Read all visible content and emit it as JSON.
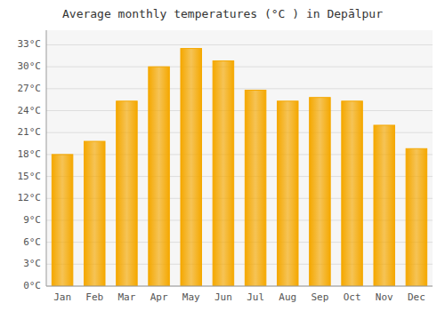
{
  "chart_data": {
    "type": "bar",
    "title": "Average monthly temperatures (°C ) in Depālpur",
    "categories": [
      "Jan",
      "Feb",
      "Mar",
      "Apr",
      "May",
      "Jun",
      "Jul",
      "Aug",
      "Sep",
      "Oct",
      "Nov",
      "Dec"
    ],
    "values": [
      18.0,
      19.8,
      25.3,
      30.0,
      32.5,
      30.8,
      26.8,
      25.3,
      25.8,
      25.3,
      22.0,
      18.8
    ],
    "color": "#F5A800",
    "ylim": [
      0,
      35
    ],
    "yticks": [
      {
        "value": 0,
        "label": "0°C"
      },
      {
        "value": 3,
        "label": "3°C"
      },
      {
        "value": 6,
        "label": "6°C"
      },
      {
        "value": 9,
        "label": "9°C"
      },
      {
        "value": 12,
        "label": "12°C"
      },
      {
        "value": 15,
        "label": "15°C"
      },
      {
        "value": 18,
        "label": "18°C"
      },
      {
        "value": 21,
        "label": "21°C"
      },
      {
        "value": 24,
        "label": "24°C"
      },
      {
        "value": 27,
        "label": "27°C"
      },
      {
        "value": 30,
        "label": "30°C"
      },
      {
        "value": 33,
        "label": "33°C"
      }
    ],
    "grid": true
  }
}
